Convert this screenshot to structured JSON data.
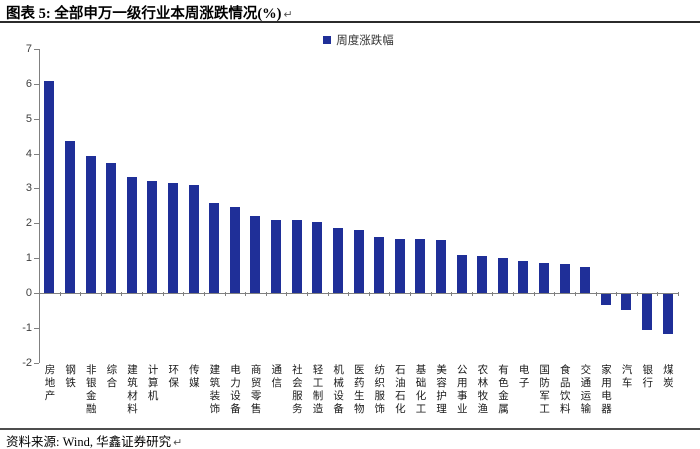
{
  "header": {
    "title": "图表 5: 全部申万一级行业本周涨跌情况(%)",
    "return_mark": "↵"
  },
  "footer": {
    "source": "资料来源: Wind, 华鑫证券研究",
    "return_mark": "↵"
  },
  "chart_data": {
    "type": "bar",
    "title": "全部申万一级行业本周涨跌情况(%)",
    "legend": [
      "周度涨跌幅"
    ],
    "legend_position": "top-center",
    "categories": [
      "房地产",
      "钢铁",
      "非银金融",
      "综合",
      "建筑材料",
      "计算机",
      "环保",
      "传媒",
      "建筑装饰",
      "电力设备",
      "商贸零售",
      "通信",
      "社会服务",
      "轻工制造",
      "机械设备",
      "医药生物",
      "纺织服饰",
      "石油石化",
      "基础化工",
      "美容护理",
      "公用事业",
      "农林牧渔",
      "有色金属",
      "电子",
      "国防军工",
      "食品饮料",
      "交通运输",
      "家用电器",
      "汽车",
      "银行",
      "煤炭"
    ],
    "values": [
      6.08,
      4.37,
      3.93,
      3.74,
      3.32,
      3.2,
      3.15,
      3.1,
      2.58,
      2.48,
      2.2,
      2.1,
      2.08,
      2.03,
      1.87,
      1.8,
      1.62,
      1.55,
      1.54,
      1.52,
      1.08,
      1.07,
      1.0,
      0.92,
      0.87,
      0.84,
      0.74,
      -0.31,
      -0.46,
      -1.03,
      -1.14
    ],
    "xlabel": "",
    "ylabel": "",
    "ylim": [
      -2,
      7
    ],
    "yticks": [
      -2,
      -1,
      0,
      1,
      2,
      3,
      4,
      5,
      6,
      7
    ],
    "grid": false,
    "bar_color": "#1F2F98",
    "axis_color": "#808080",
    "tick_label_color": "#404040"
  }
}
